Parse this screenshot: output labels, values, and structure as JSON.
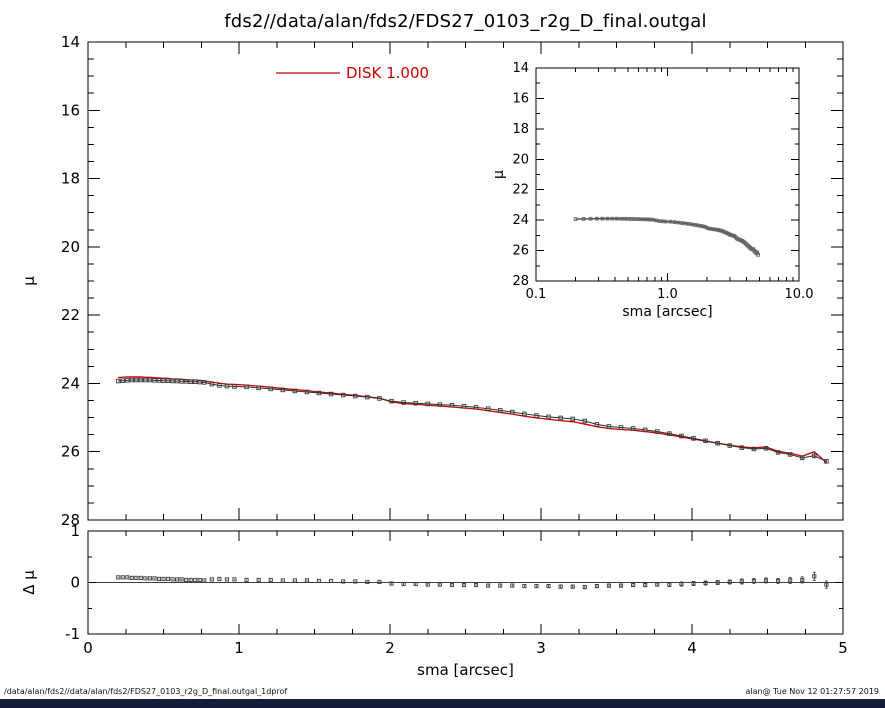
{
  "title": "fds2//data/alan/fds2/FDS27_0103_r2g_D_final.outgal",
  "footer": {
    "left": "/data/alan/fds2//data/alan/fds2/FDS27_0103_r2g_D_final.outgal_1dprof",
    "right": "alan@  Tue Nov 12 01:27:57 2019"
  },
  "colors": {
    "disk": "#cc0000",
    "data": "#3a3a3a",
    "data_light": "#666666",
    "axis": "#000000",
    "strip": "#141c3c"
  },
  "chart_data": {
    "type": "line",
    "title": "fds2//data/alan/fds2/FDS27_0103_r2g_D_final.outgal",
    "legend": {
      "label": "DISK  1.000",
      "color": "#cc0000",
      "position": "top-left-inside-main"
    },
    "panels": {
      "main": {
        "xlabel": "",
        "ylabel": "μ",
        "xlim": [
          0,
          5
        ],
        "ylim": [
          28,
          14
        ],
        "xticks": [
          0,
          1,
          2,
          3,
          4,
          5
        ],
        "yticks": [
          14,
          16,
          18,
          20,
          22,
          24,
          26,
          28
        ],
        "grid": false
      },
      "inset": {
        "xlabel": "sma [arcsec]",
        "ylabel": "μ",
        "xscale": "log",
        "xlim": [
          0.1,
          10
        ],
        "xticks": [
          0.1,
          1,
          10
        ],
        "xtick_labels": [
          "0.1",
          "1.0",
          "10.0"
        ],
        "ylim": [
          28,
          14
        ],
        "yticks": [
          14,
          16,
          18,
          20,
          22,
          24,
          26,
          28
        ]
      },
      "residual": {
        "xlabel": "sma [arcsec]",
        "ylabel": "Δ μ",
        "xlim": [
          0,
          5
        ],
        "ylim": [
          -1,
          1
        ],
        "xticks": [
          0,
          1,
          2,
          3,
          4,
          5
        ],
        "xtick_labels": [
          "0",
          "1",
          "2",
          "3",
          "4",
          "5"
        ],
        "yticks": [
          1,
          0,
          -1
        ],
        "ytick_labels": [
          "1",
          "0",
          "-1"
        ]
      }
    },
    "model_note": "disk model profile = mu_data - delta_mu; residual panel plots delta_mu",
    "series": {
      "sma": [
        0.2,
        0.23,
        0.26,
        0.29,
        0.32,
        0.35,
        0.38,
        0.41,
        0.44,
        0.47,
        0.5,
        0.53,
        0.56,
        0.59,
        0.62,
        0.65,
        0.68,
        0.71,
        0.74,
        0.77,
        0.82,
        0.87,
        0.92,
        0.97,
        1.05,
        1.13,
        1.21,
        1.29,
        1.37,
        1.45,
        1.53,
        1.61,
        1.69,
        1.77,
        1.85,
        1.93,
        2.01,
        2.09,
        2.17,
        2.25,
        2.33,
        2.41,
        2.49,
        2.57,
        2.65,
        2.73,
        2.81,
        2.89,
        2.97,
        3.05,
        3.13,
        3.21,
        3.29,
        3.37,
        3.45,
        3.53,
        3.61,
        3.69,
        3.77,
        3.85,
        3.93,
        4.01,
        4.09,
        4.17,
        4.25,
        4.33,
        4.41,
        4.49,
        4.57,
        4.65,
        4.73,
        4.81,
        4.89
      ],
      "mu_data": [
        23.93,
        23.92,
        23.91,
        23.9,
        23.9,
        23.9,
        23.9,
        23.9,
        23.91,
        23.91,
        23.92,
        23.92,
        23.93,
        23.93,
        23.94,
        23.94,
        23.95,
        23.95,
        23.96,
        23.97,
        24.02,
        24.06,
        24.08,
        24.09,
        24.1,
        24.13,
        24.16,
        24.19,
        24.22,
        24.25,
        24.28,
        24.31,
        24.34,
        24.37,
        24.4,
        24.44,
        24.52,
        24.56,
        24.58,
        24.6,
        24.62,
        24.64,
        24.67,
        24.7,
        24.74,
        24.79,
        24.84,
        24.89,
        24.94,
        24.98,
        25.01,
        25.04,
        25.1,
        25.2,
        25.26,
        25.29,
        25.32,
        25.36,
        25.41,
        25.47,
        25.54,
        25.61,
        25.68,
        25.75,
        25.82,
        25.88,
        25.92,
        25.9,
        26.02,
        26.08,
        26.18,
        26.12,
        26.28
      ],
      "delta_mu": [
        0.1,
        0.1,
        0.1,
        0.09,
        0.09,
        0.09,
        0.08,
        0.08,
        0.08,
        0.07,
        0.07,
        0.07,
        0.06,
        0.06,
        0.06,
        0.05,
        0.05,
        0.05,
        0.05,
        0.04,
        0.06,
        0.07,
        0.06,
        0.06,
        0.05,
        0.05,
        0.05,
        0.04,
        0.04,
        0.04,
        0.03,
        0.03,
        0.02,
        0.02,
        0.01,
        0.01,
        -0.02,
        -0.03,
        -0.03,
        -0.04,
        -0.04,
        -0.05,
        -0.05,
        -0.05,
        -0.06,
        -0.06,
        -0.06,
        -0.07,
        -0.07,
        -0.07,
        -0.08,
        -0.08,
        -0.09,
        -0.07,
        -0.06,
        -0.06,
        -0.05,
        -0.05,
        -0.04,
        -0.04,
        -0.03,
        -0.02,
        -0.01,
        0,
        0.01,
        0.02,
        0.03,
        0.04,
        0.03,
        0.04,
        0.05,
        0.12,
        -0.04
      ],
      "err": [
        0.01,
        0.01,
        0.01,
        0.01,
        0.01,
        0.01,
        0.01,
        0.01,
        0.01,
        0.01,
        0.01,
        0.01,
        0.01,
        0.01,
        0.01,
        0.01,
        0.01,
        0.01,
        0.01,
        0.01,
        0.01,
        0.01,
        0.01,
        0.01,
        0.01,
        0.01,
        0.01,
        0.01,
        0.01,
        0.01,
        0.01,
        0.01,
        0.01,
        0.01,
        0.01,
        0.01,
        0.02,
        0.02,
        0.02,
        0.02,
        0.02,
        0.02,
        0.02,
        0.02,
        0.02,
        0.02,
        0.02,
        0.02,
        0.02,
        0.03,
        0.03,
        0.03,
        0.03,
        0.03,
        0.03,
        0.03,
        0.03,
        0.03,
        0.03,
        0.04,
        0.04,
        0.04,
        0.04,
        0.04,
        0.04,
        0.05,
        0.05,
        0.05,
        0.05,
        0.06,
        0.06,
        0.08,
        0.07
      ]
    }
  }
}
